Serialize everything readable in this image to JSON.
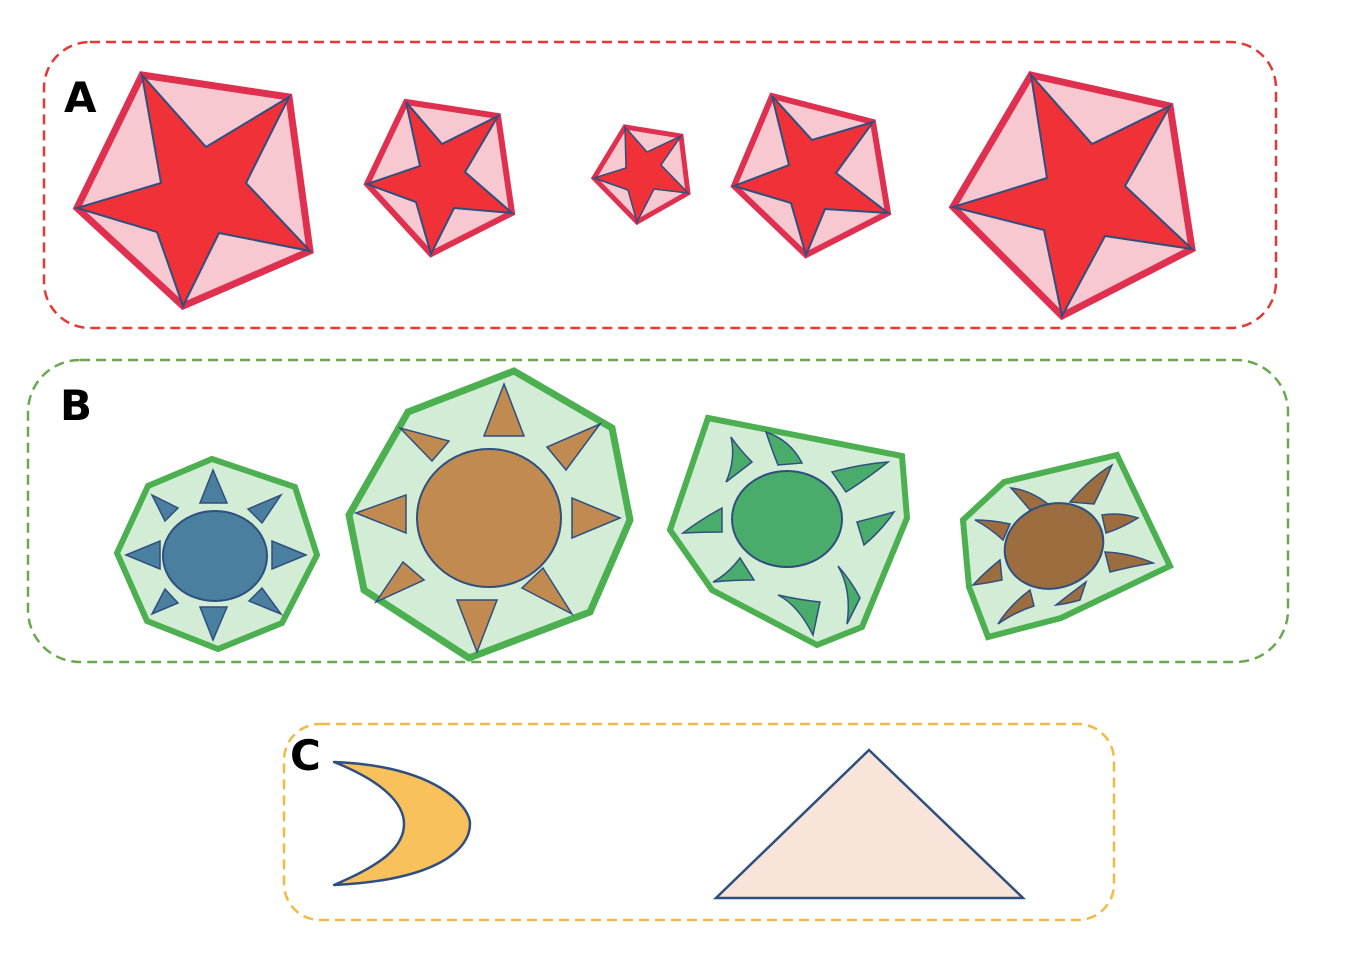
{
  "colors": {
    "panel_a_border": "#e53935",
    "panel_b_border": "#6aa84f",
    "panel_c_border": "#f4b942",
    "star_fill": "#f03238",
    "pentagon_fill": "#f7c8d0",
    "pentagon_stroke": "#e03050",
    "heptagon_fill": "#d2ecd6",
    "heptagon_stroke": "#4cb050",
    "outline": "#2f4f7f",
    "moon_fill": "#f9c15c",
    "triangle_fill": "#f8e4d8"
  },
  "panels": {
    "a": {
      "label": "A",
      "items": [
        {
          "shape": "pentagon-star",
          "icon": "star-in-pentagon-icon"
        },
        {
          "shape": "pentagon-star",
          "icon": "star-in-pentagon-icon"
        },
        {
          "shape": "pentagon-star",
          "icon": "star-in-pentagon-icon"
        },
        {
          "shape": "pentagon-star",
          "icon": "star-in-pentagon-icon"
        },
        {
          "shape": "pentagon-star",
          "icon": "star-in-pentagon-icon"
        }
      ]
    },
    "b": {
      "label": "B",
      "items": [
        {
          "shape": "sun-in-heptagon",
          "icon": "sun-icon",
          "sun_color": "#4a7fa0"
        },
        {
          "shape": "sun-in-heptagon",
          "icon": "sun-icon",
          "sun_color": "#c08a50"
        },
        {
          "shape": "sun-in-heptagon",
          "icon": "sun-icon",
          "sun_color": "#4aac6a"
        },
        {
          "shape": "sun-in-heptagon",
          "icon": "sun-icon",
          "sun_color": "#9c6d3e"
        }
      ]
    },
    "c": {
      "label": "C",
      "items": [
        {
          "shape": "crescent",
          "icon": "crescent-moon-icon"
        },
        {
          "shape": "triangle",
          "icon": "triangle-icon"
        }
      ]
    }
  }
}
